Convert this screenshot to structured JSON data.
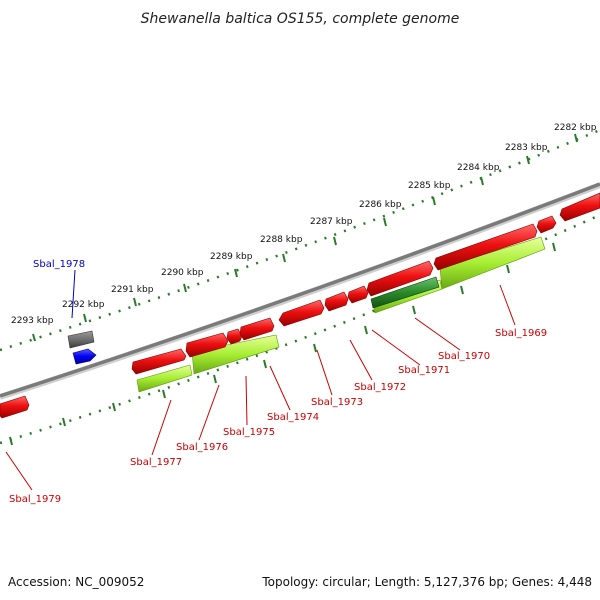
{
  "title": "Shewanella baltica OS155, complete genome",
  "footer": {
    "accession": "Accession: NC_009052",
    "summary": "Topology: circular; Length: 5,127,376 bp; Genes: 4,448"
  },
  "ticks": [
    "2282 kbp",
    "2283 kbp",
    "2284 kbp",
    "2285 kbp",
    "2286 kbp",
    "2287 kbp",
    "2288 kbp",
    "2289 kbp",
    "2290 kbp",
    "2291 kbp",
    "2292 kbp",
    "2293 kbp"
  ],
  "genes": [
    "Sbal_1969",
    "Sbal_1970",
    "Sbal_1971",
    "Sbal_1972",
    "Sbal_1973",
    "Sbal_1974",
    "Sbal_1975",
    "Sbal_1976",
    "Sbal_1977",
    "Sbal_1978",
    "Sbal_1979"
  ],
  "colors": {
    "cds": "#e00000",
    "rna": "#2a8a2a",
    "gene_band": "#9ae62a",
    "backbone": "#888888",
    "ruler": "#2a7a2a",
    "highlight": "#0000ee",
    "pseudo": "#666666"
  }
}
